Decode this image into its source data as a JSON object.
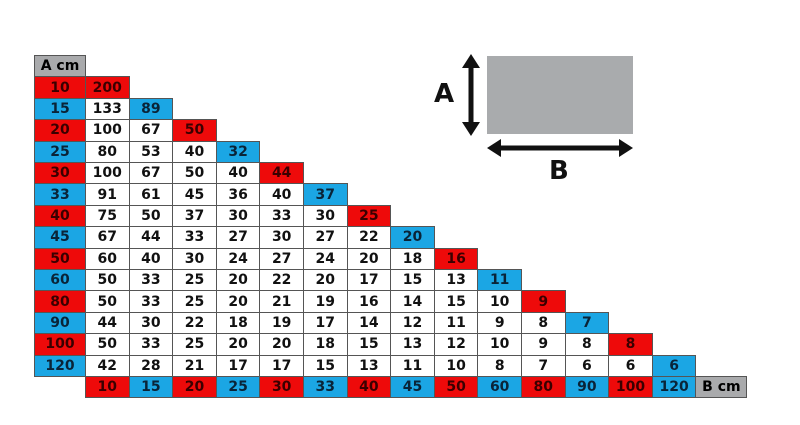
{
  "table": {
    "corner_label": "A cm",
    "bottom_label": "B cm",
    "a_values": [
      "10",
      "15",
      "20",
      "25",
      "30",
      "33",
      "40",
      "45",
      "50",
      "60",
      "80",
      "90",
      "100",
      "120"
    ],
    "b_values": [
      "10",
      "15",
      "20",
      "25",
      "30",
      "33",
      "40",
      "45",
      "50",
      "60",
      "80",
      "90",
      "100",
      "120"
    ],
    "rows": [
      [
        "200"
      ],
      [
        "133",
        "89"
      ],
      [
        "100",
        "67",
        "50"
      ],
      [
        "80",
        "53",
        "40",
        "32"
      ],
      [
        "100",
        "67",
        "50",
        "40",
        "44"
      ],
      [
        "91",
        "61",
        "45",
        "36",
        "40",
        "37"
      ],
      [
        "75",
        "50",
        "37",
        "30",
        "33",
        "30",
        "25"
      ],
      [
        "67",
        "44",
        "33",
        "27",
        "30",
        "27",
        "22",
        "20"
      ],
      [
        "60",
        "40",
        "30",
        "24",
        "27",
        "24",
        "20",
        "18",
        "16"
      ],
      [
        "50",
        "33",
        "25",
        "20",
        "22",
        "20",
        "17",
        "15",
        "13",
        "11"
      ],
      [
        "50",
        "33",
        "25",
        "20",
        "21",
        "19",
        "16",
        "14",
        "15",
        "10",
        "9"
      ],
      [
        "44",
        "30",
        "22",
        "18",
        "19",
        "17",
        "14",
        "12",
        "11",
        "9",
        "8",
        "7"
      ],
      [
        "50",
        "33",
        "25",
        "20",
        "20",
        "18",
        "15",
        "13",
        "12",
        "10",
        "9",
        "8",
        "8"
      ],
      [
        "42",
        "28",
        "21",
        "17",
        "17",
        "15",
        "13",
        "11",
        "10",
        "8",
        "7",
        "6",
        "6",
        "6"
      ]
    ],
    "colors": {
      "red": "#ee0a0a",
      "blue": "#1ba6e4",
      "gray": "#a9aaac"
    }
  },
  "diagram": {
    "label_a": "A",
    "label_b": "B"
  }
}
